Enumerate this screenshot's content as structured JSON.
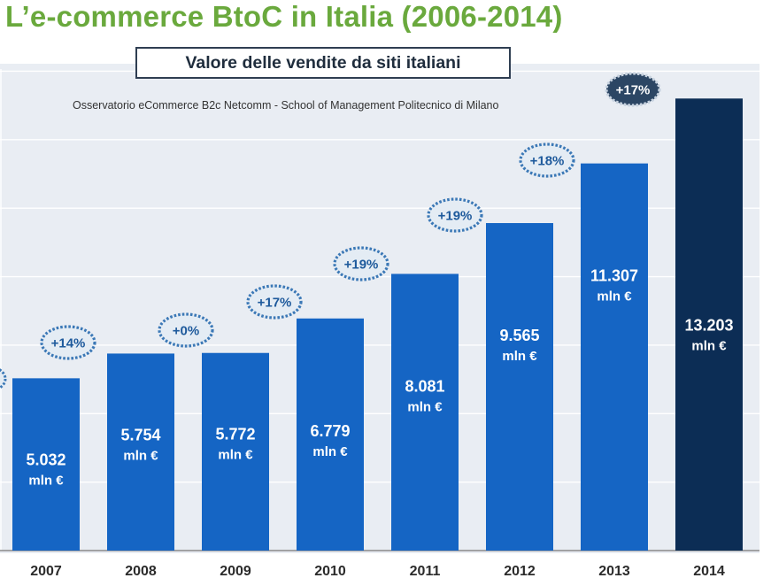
{
  "title": "L’e-commerce BtoC in Italia (2006-2014)",
  "subtitle": "Valore delle vendite da siti italiani",
  "source": "Osservatorio eCommerce B2c Netcomm - School of Management Politecnico di Milano",
  "colors": {
    "bar": "#1565c4",
    "bar_highlight": "#0c2d55",
    "badge_text": "#1e5a9c",
    "title": "#6aa93d"
  },
  "chart_data": {
    "type": "bar",
    "categories": [
      "2007",
      "2008",
      "2009",
      "2010",
      "2011",
      "2012",
      "2013",
      "2014"
    ],
    "values": [
      5032,
      5754,
      5772,
      6779,
      8081,
      9565,
      11307,
      13203
    ],
    "value_labels": [
      "5.032",
      "5.754",
      "5.772",
      "6.779",
      "8.081",
      "9.565",
      "11.307",
      "13.203"
    ],
    "unit": "mln €",
    "growth_labels": [
      "+14%",
      "+0%",
      "+17%",
      "+19%",
      "+19%",
      "+18%",
      "+17%"
    ],
    "growth_categories": [
      "2008",
      "2009",
      "2010",
      "2011",
      "2012",
      "2013",
      "2014"
    ],
    "ylim": [
      0,
      14000
    ],
    "grid": true,
    "title": "Valore delle vendite da siti italiani",
    "xlabel": "",
    "ylabel": ""
  }
}
